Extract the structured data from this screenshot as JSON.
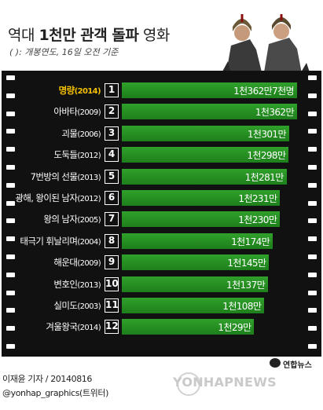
{
  "header": {
    "title_prefix": "역대 ",
    "title_bold": "1천만 관객 돌파",
    "title_suffix": " 영화",
    "subtitle": "(  ): 개봉연도, 16일 오전 기준"
  },
  "chart_data": {
    "type": "bar",
    "orientation": "horizontal",
    "categories": [
      "명량",
      "아바타",
      "괴물",
      "도둑들",
      "7번방의 선물",
      "광해, 왕이된 남자",
      "왕의 남자",
      "태극기 휘날리며",
      "해운대",
      "변호인",
      "실미도",
      "겨울왕국"
    ],
    "years": [
      "(2014)",
      "(2009)",
      "(2006)",
      "(2012)",
      "(2013)",
      "(2012)",
      "(2005)",
      "(2004)",
      "(2009)",
      "(2013)",
      "(2003)",
      "(2014)"
    ],
    "ranks": [
      "1",
      "2",
      "3",
      "4",
      "5",
      "6",
      "7",
      "8",
      "9",
      "10",
      "11",
      "12"
    ],
    "series": [
      {
        "values": [
          13627,
          13620,
          13010,
          12980,
          12810,
          12310,
          12300,
          11740,
          11450,
          11370,
          11080,
          10290
        ],
        "labels": [
          "1천362만7천명",
          "1천362만",
          "1천301만",
          "1천298만",
          "1천281만",
          "1천231만",
          "1천230만",
          "1천174만",
          "1천145만",
          "1천137만",
          "1천108만",
          "1천29만"
        ]
      }
    ],
    "xlim": [
      0,
      13627
    ],
    "legend": "none",
    "grid": false
  },
  "footer": {
    "reporter": "이재윤 기자 / 20140816",
    "handle": "@yonhap_graphics(트위터)",
    "watermark": "YONHAPNEWS",
    "logo": "연합뉴스"
  },
  "colors": {
    "bar": "#2a9a27",
    "highlight_label": "#f5c000",
    "film": "#111111"
  }
}
